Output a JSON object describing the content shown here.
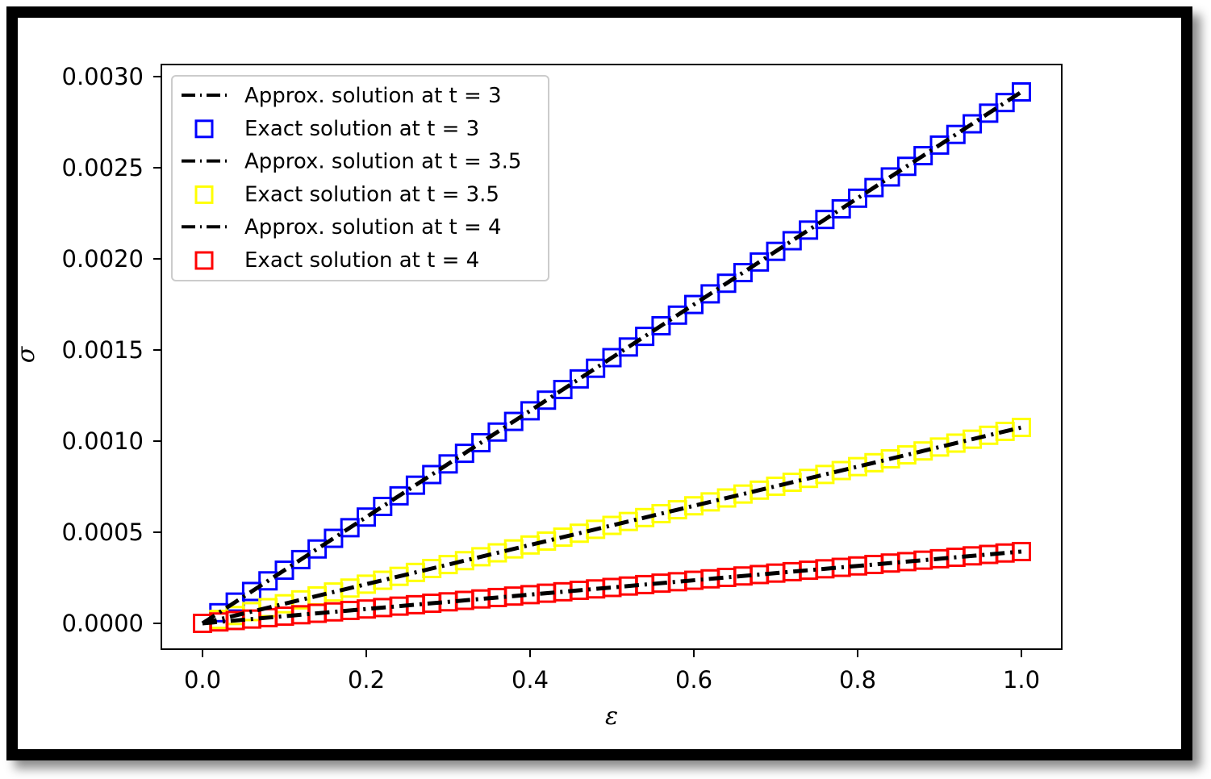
{
  "chart_data": {
    "type": "line",
    "title": "",
    "xlabel": "ε",
    "ylabel": "σ",
    "xlim": [
      -0.05,
      1.05
    ],
    "ylim": [
      -0.00014,
      0.00316
    ],
    "xticks": [
      "0.0",
      "0.2",
      "0.4",
      "0.6",
      "0.8",
      "1.0"
    ],
    "xtick_values": [
      0.0,
      0.2,
      0.4,
      0.6,
      0.8,
      1.0
    ],
    "yticks": [
      "0.0000",
      "0.0005",
      "0.0010",
      "0.0015",
      "0.0020",
      "0.0025",
      "0.0030"
    ],
    "ytick_values": [
      0.0,
      0.0005,
      0.001,
      0.0015,
      0.002,
      0.0025,
      0.003
    ],
    "grid": false,
    "legend_position": "upper left",
    "x_points": {
      "start": 0.0,
      "end": 1.0,
      "step": 0.02,
      "count": 51
    },
    "series": [
      {
        "name": "Approx. solution at t = 3",
        "style": "dash-dot",
        "color": "#000000",
        "slope": 0.002916,
        "values_at": {
          "0.0": 0.0,
          "0.5": 0.001458,
          "1.0": 0.002916
        }
      },
      {
        "name": "Exact solution at t = 3",
        "style": "square-marker",
        "color": "#0000ff",
        "slope": 0.002916,
        "values_at": {
          "0.0": 0.0,
          "0.5": 0.001458,
          "1.0": 0.002916
        }
      },
      {
        "name": "Approx. solution at t = 3.5",
        "style": "dash-dot",
        "color": "#000000",
        "slope": 0.001075,
        "values_at": {
          "0.0": 0.0,
          "0.5": 0.000538,
          "1.0": 0.001075
        }
      },
      {
        "name": "Exact solution at t = 3.5",
        "style": "square-marker",
        "color": "#ffff00",
        "slope": 0.001075,
        "values_at": {
          "0.0": 0.0,
          "0.5": 0.000538,
          "1.0": 0.001075
        }
      },
      {
        "name": "Approx. solution at t = 4",
        "style": "dash-dot",
        "color": "#000000",
        "slope": 0.000394,
        "values_at": {
          "0.0": 0.0,
          "0.5": 0.000197,
          "1.0": 0.000394
        }
      },
      {
        "name": "Exact solution at t = 4",
        "style": "square-marker",
        "color": "#ff0000",
        "slope": 0.000394,
        "values_at": {
          "0.0": 0.0,
          "0.5": 0.000197,
          "1.0": 0.000394
        }
      }
    ]
  },
  "legend": {
    "items": [
      {
        "label": "Approx. solution at t = 3",
        "kind": "line",
        "color": "#000000"
      },
      {
        "label": "Exact solution at t = 3",
        "kind": "square",
        "color": "#0000ff"
      },
      {
        "label": "Approx. solution at t = 3.5",
        "kind": "line",
        "color": "#000000"
      },
      {
        "label": "Exact solution at t = 3.5",
        "kind": "square",
        "color": "#ffff00"
      },
      {
        "label": "Approx. solution at t = 4",
        "kind": "line",
        "color": "#000000"
      },
      {
        "label": "Exact solution at t = 4",
        "kind": "square",
        "color": "#ff0000"
      }
    ]
  }
}
